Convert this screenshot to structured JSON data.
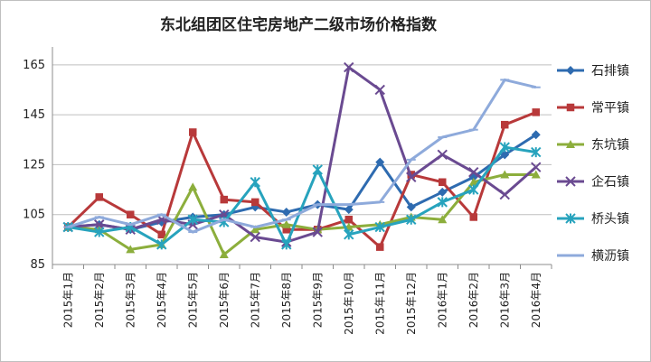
{
  "chart_data": {
    "type": "line",
    "title": "东北组团区住宅房地产二级市场价格指数",
    "xlabel": "",
    "ylabel": "",
    "ylim": [
      85,
      170
    ],
    "yticks": [
      85,
      105,
      125,
      145,
      165
    ],
    "grid": "horizontal",
    "legend_position": "right",
    "categories": [
      "2015年1月",
      "2015年2月",
      "2015年3月",
      "2015年4月",
      "2015年5月",
      "2015年6月",
      "2015年7月",
      "2015年8月",
      "2015年9月",
      "2015年10月",
      "2015年11月",
      "2015年12月",
      "2016年1月",
      "2016年2月",
      "2016年3月",
      "2016年4月"
    ],
    "series": [
      {
        "name": "石排镇",
        "color": "#2e6bb0",
        "marker": "diamond",
        "values": [
          100,
          101,
          99,
          102,
          104,
          105,
          108,
          106,
          109,
          107,
          126,
          108,
          114,
          120,
          129,
          137
        ]
      },
      {
        "name": "常平镇",
        "color": "#b8393a",
        "marker": "square",
        "values": [
          100,
          112,
          105,
          97,
          138,
          111,
          110,
          99,
          99,
          103,
          92,
          121,
          118,
          104,
          141,
          146
        ]
      },
      {
        "name": "东坑镇",
        "color": "#8cae3c",
        "marker": "triangle",
        "values": [
          100,
          99,
          91,
          93,
          116,
          89,
          99,
          101,
          99,
          100,
          101,
          104,
          103,
          118,
          121,
          121
        ]
      },
      {
        "name": "企石镇",
        "color": "#6a4a91",
        "marker": "x",
        "values": [
          100,
          101,
          99,
          103,
          101,
          105,
          96,
          94,
          98,
          164,
          155,
          120,
          129,
          122,
          113,
          124
        ]
      },
      {
        "name": "桥头镇",
        "color": "#27a3bd",
        "marker": "star",
        "values": [
          100,
          98,
          100,
          93,
          103,
          102,
          118,
          93,
          123,
          97,
          100,
          103,
          110,
          115,
          132,
          130
        ]
      },
      {
        "name": "横沥镇",
        "color": "#8eaadb",
        "marker": "dash",
        "values": [
          100,
          104,
          101,
          105,
          98,
          103,
          100,
          103,
          109,
          109,
          110,
          127,
          136,
          139,
          159,
          156
        ]
      }
    ]
  }
}
